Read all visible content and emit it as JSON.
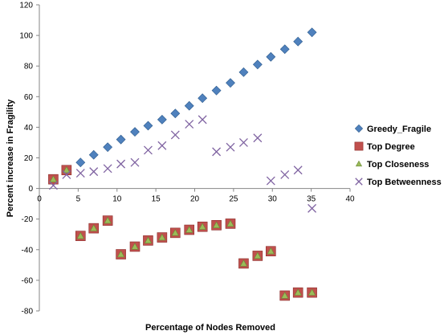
{
  "chart_data": {
    "type": "scatter",
    "title": "",
    "xlabel": "Percentage of Nodes Removed",
    "ylabel": "Percent increase in Fragility",
    "xlim": [
      0,
      40
    ],
    "ylim": [
      -80,
      120
    ],
    "xticks": [
      0,
      5,
      10,
      15,
      20,
      25,
      30,
      35,
      40
    ],
    "yticks": [
      -80,
      -60,
      -40,
      -20,
      0,
      20,
      40,
      60,
      80,
      100,
      120
    ],
    "grid": false,
    "legend_position": "right",
    "series": [
      {
        "name": "Greedy_Fragile",
        "marker": "diamond",
        "color": "#4f81bd",
        "x": [
          1.8,
          3.5,
          5.3,
          7.0,
          8.8,
          10.5,
          12.3,
          14.0,
          15.8,
          17.5,
          19.3,
          21.0,
          22.8,
          24.6,
          26.3,
          28.1,
          29.8,
          31.6,
          33.3,
          35.1
        ],
        "y": [
          6,
          12,
          17,
          22,
          27,
          32,
          37,
          41,
          45,
          49,
          54,
          59,
          64,
          69,
          76,
          81,
          86,
          91,
          96,
          102
        ]
      },
      {
        "name": "Top Degree",
        "marker": "square",
        "color": "#c0504d",
        "x": [
          1.8,
          3.5,
          5.3,
          7.0,
          8.8,
          10.5,
          12.3,
          14.0,
          15.8,
          17.5,
          19.3,
          21.0,
          22.8,
          24.6,
          26.3,
          28.1,
          29.8,
          31.6,
          33.3,
          35.1
        ],
        "y": [
          6,
          12,
          -31,
          -26,
          -21,
          -43,
          -38,
          -34,
          -32,
          -29,
          -27,
          -25,
          -24,
          -23,
          -49,
          -44,
          -41,
          -70,
          -68,
          -68
        ]
      },
      {
        "name": "Top Closeness",
        "marker": "triangle",
        "color": "#9bbb59",
        "x": [
          1.8,
          3.5,
          5.3,
          7.0,
          8.8,
          10.5,
          12.3,
          14.0,
          15.8,
          17.5,
          19.3,
          21.0,
          22.8,
          24.6,
          26.3,
          28.1,
          29.8,
          31.6,
          33.3,
          35.1
        ],
        "y": [
          6,
          12,
          -31,
          -26,
          -21,
          -43,
          -38,
          -34,
          -32,
          -29,
          -27,
          -25,
          -24,
          -23,
          -49,
          -44,
          -41,
          -70,
          -68,
          -68
        ]
      },
      {
        "name": "Top Betweenness",
        "marker": "x",
        "color": "#8064a2",
        "x": [
          1.8,
          3.5,
          5.3,
          7.0,
          8.8,
          10.5,
          12.3,
          14.0,
          15.8,
          17.5,
          19.3,
          21.0,
          22.8,
          24.6,
          26.3,
          28.1,
          29.8,
          31.6,
          33.3,
          35.1
        ],
        "y": [
          2,
          9,
          10,
          11,
          13,
          16,
          17,
          25,
          28,
          35,
          42,
          45,
          24,
          27,
          30,
          33,
          5,
          9,
          12,
          -13
        ]
      }
    ]
  }
}
